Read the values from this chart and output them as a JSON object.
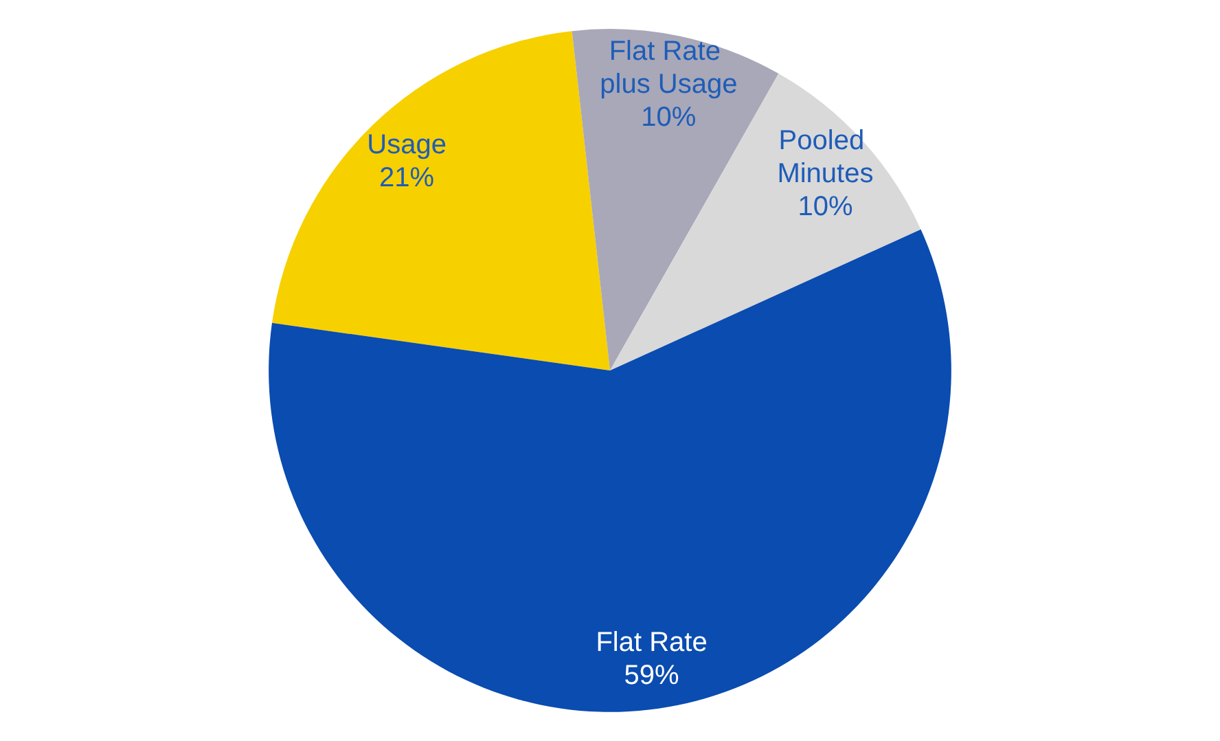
{
  "chart_data": {
    "type": "pie",
    "categories": [
      "Usage",
      "Flat Rate plus Usage",
      "Pooled Minutes",
      "Flat Rate"
    ],
    "values": [
      21,
      10,
      10,
      59
    ],
    "colors": [
      "#f7d000",
      "#a8a8b8",
      "#d9d9d9",
      "#0a4cb0"
    ],
    "value_labels": [
      "21%",
      "10%",
      "10%",
      "59%"
    ],
    "data_labels": true
  }
}
